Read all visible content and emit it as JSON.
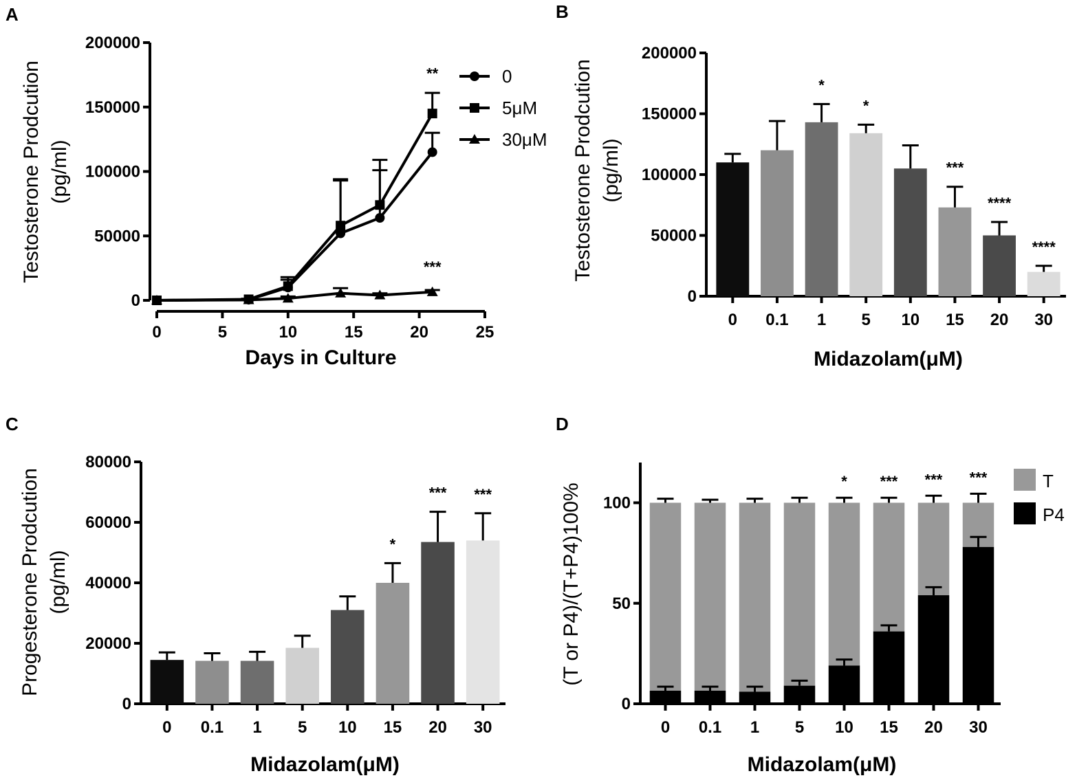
{
  "chart_data": [
    {
      "panel": "A",
      "type": "line",
      "title": "",
      "xlabel": "Days in Culture",
      "ylabel": [
        "Testosterone Prodcution",
        "(pg/ml)"
      ],
      "xlim": [
        0,
        25
      ],
      "ylim": [
        0,
        200000
      ],
      "xticks": [
        "0",
        "5",
        "10",
        "15",
        "20",
        "25"
      ],
      "yticks": [
        "0",
        "50000",
        "100000",
        "150000",
        "200000"
      ],
      "legend": "right",
      "series": [
        {
          "name": "0",
          "marker": "circle",
          "x": [
            0,
            7,
            10,
            14,
            17,
            21
          ],
          "y": [
            0,
            500,
            10000,
            52000,
            64000,
            115000
          ],
          "err": [
            0,
            500,
            6000,
            42000,
            37000,
            15000
          ]
        },
        {
          "name": "5μM",
          "marker": "square",
          "x": [
            0,
            7,
            10,
            14,
            17,
            21
          ],
          "y": [
            0,
            800,
            11000,
            58000,
            74000,
            145000
          ],
          "err": [
            0,
            500,
            7000,
            35000,
            35000,
            16000
          ]
        },
        {
          "name": "30μM",
          "marker": "triangle",
          "x": [
            0,
            7,
            10,
            14,
            17,
            21
          ],
          "y": [
            0,
            300,
            1500,
            5500,
            4000,
            6500
          ],
          "err": [
            0,
            300,
            1500,
            4000,
            1500,
            1500
          ]
        }
      ],
      "annotations": [
        {
          "text": "**",
          "x": 21,
          "y": 172000
        },
        {
          "text": "***",
          "x": 21,
          "y": 22000
        }
      ]
    },
    {
      "panel": "B",
      "type": "bar",
      "title": "",
      "xlabel": "Midazolam(μM)",
      "ylabel": [
        "Testosterone Prodcution",
        "(pg/ml)"
      ],
      "ylim": [
        0,
        200000
      ],
      "yticks": [
        "0",
        "50000",
        "100000",
        "150000",
        "200000"
      ],
      "categories": [
        "0",
        "0.1",
        "1",
        "5",
        "10",
        "15",
        "20",
        "30"
      ],
      "values": [
        110000,
        120000,
        143000,
        134000,
        105000,
        73000,
        50000,
        20000
      ],
      "errors": [
        7000,
        24000,
        15000,
        7000,
        19000,
        17000,
        11000,
        5000
      ],
      "colors": [
        "#0d0d0d",
        "#8e8e8e",
        "#6e6e6e",
        "#d0d0d0",
        "#4d4d4d",
        "#979797",
        "#4a4a4a",
        "#dcdcdc"
      ],
      "significance": [
        "",
        "",
        "*",
        "*",
        "",
        "***",
        "****",
        "****"
      ]
    },
    {
      "panel": "C",
      "type": "bar",
      "title": "",
      "xlabel": "Midazolam(μM)",
      "ylabel": [
        "Progesterone Prodcution",
        "(pg/ml)"
      ],
      "ylim": [
        0,
        80000
      ],
      "yticks": [
        "0",
        "20000",
        "40000",
        "60000",
        "80000"
      ],
      "categories": [
        "0",
        "0.1",
        "1",
        "5",
        "10",
        "15",
        "20",
        "30"
      ],
      "values": [
        14500,
        14200,
        14200,
        18500,
        31000,
        40000,
        53500,
        54000
      ],
      "errors": [
        2500,
        2500,
        3000,
        4000,
        4500,
        6500,
        10000,
        9000
      ],
      "colors": [
        "#0d0d0d",
        "#8e8e8e",
        "#6e6e6e",
        "#d0d0d0",
        "#4d4d4d",
        "#979797",
        "#4a4a4a",
        "#e4e4e4"
      ],
      "significance": [
        "",
        "",
        "",
        "",
        "",
        "*",
        "***",
        "***"
      ]
    },
    {
      "panel": "D",
      "type": "bar",
      "stacked": true,
      "title": "",
      "xlabel": "Midazolam(μM)",
      "ylabel": "(T or P4)/(T+P4)100%",
      "ylim": [
        0,
        120
      ],
      "yticks": [
        "0",
        "50",
        "100"
      ],
      "categories": [
        "0",
        "0.1",
        "1",
        "5",
        "10",
        "15",
        "20",
        "30"
      ],
      "legend": "top-right",
      "series": [
        {
          "name": "P4",
          "color": "#000000",
          "values": [
            6.5,
            6.5,
            6,
            9,
            19,
            36,
            54,
            78
          ],
          "err": [
            2,
            2,
            2.5,
            2.5,
            3,
            3,
            4,
            5
          ]
        },
        {
          "name": "T",
          "color": "#999999",
          "values": [
            93.5,
            93.5,
            94,
            91,
            81,
            64,
            46,
            22
          ],
          "err": [
            2,
            1.5,
            2,
            2.5,
            2.5,
            2.5,
            3.5,
            4.5
          ]
        }
      ],
      "significance": [
        "",
        "",
        "",
        "",
        "*",
        "***",
        "***",
        "***"
      ]
    }
  ]
}
